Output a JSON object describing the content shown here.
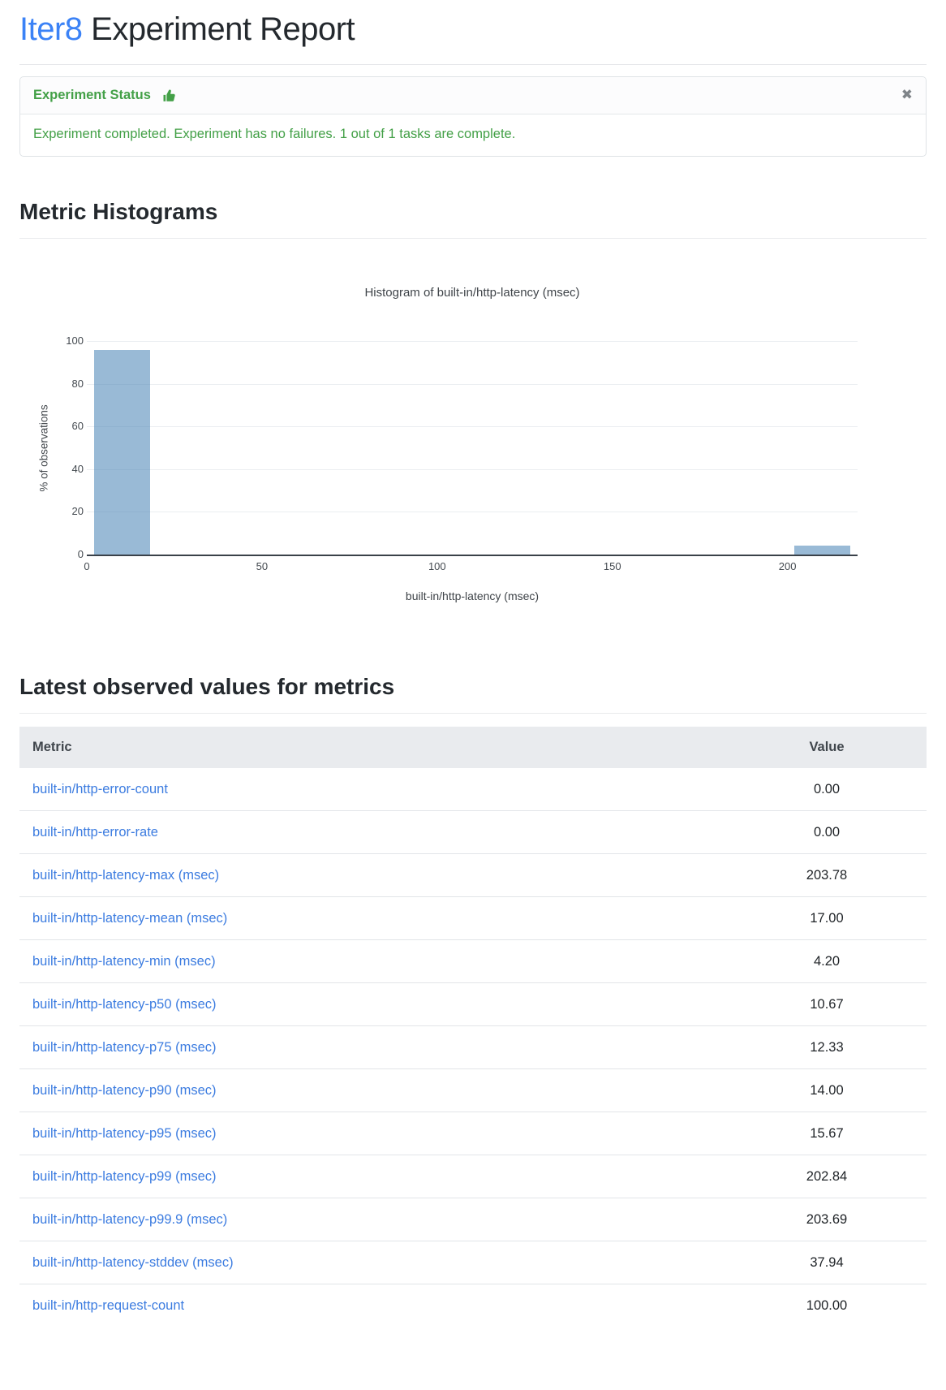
{
  "page": {
    "title_brand": "Iter8",
    "title_rest": " Experiment Report"
  },
  "status_card": {
    "header_label": "Experiment Status",
    "close_glyph": "✖",
    "message": "Experiment completed. Experiment has no failures. 1 out of 1 tasks are complete.",
    "accent_green": "#43a047"
  },
  "sections": {
    "histograms_heading": "Metric Histograms",
    "latest_values_heading": "Latest observed values for metrics"
  },
  "chart_data": {
    "type": "bar",
    "subtype": "histogram",
    "title": "Histogram of built-in/http-latency (msec)",
    "xlabel": "built-in/http-latency (msec)",
    "ylabel": "% of observations",
    "bins": [
      {
        "range": [
          0,
          20
        ],
        "percent": 96
      },
      {
        "range": [
          200,
          220
        ],
        "percent": 4
      }
    ],
    "x_ticks": [
      0,
      50,
      100,
      150,
      200
    ],
    "y_ticks": [
      0,
      20,
      40,
      60,
      80,
      100
    ],
    "xlim": [
      0,
      220
    ],
    "ylim": [
      0,
      100
    ],
    "grid": "horizontal-only",
    "legend": "none",
    "bar_color": "rgba(70,130,180,0.55)"
  },
  "table": {
    "headers": [
      "Metric",
      "Value"
    ],
    "rows": [
      {
        "metric": "built-in/http-error-count",
        "value": "0.00"
      },
      {
        "metric": "built-in/http-error-rate",
        "value": "0.00"
      },
      {
        "metric": "built-in/http-latency-max (msec)",
        "value": "203.78"
      },
      {
        "metric": "built-in/http-latency-mean (msec)",
        "value": "17.00"
      },
      {
        "metric": "built-in/http-latency-min (msec)",
        "value": "4.20"
      },
      {
        "metric": "built-in/http-latency-p50 (msec)",
        "value": "10.67"
      },
      {
        "metric": "built-in/http-latency-p75 (msec)",
        "value": "12.33"
      },
      {
        "metric": "built-in/http-latency-p90 (msec)",
        "value": "14.00"
      },
      {
        "metric": "built-in/http-latency-p95 (msec)",
        "value": "15.67"
      },
      {
        "metric": "built-in/http-latency-p99 (msec)",
        "value": "202.84"
      },
      {
        "metric": "built-in/http-latency-p99.9 (msec)",
        "value": "203.69"
      },
      {
        "metric": "built-in/http-latency-stddev (msec)",
        "value": "37.94"
      },
      {
        "metric": "built-in/http-request-count",
        "value": "100.00"
      }
    ]
  }
}
